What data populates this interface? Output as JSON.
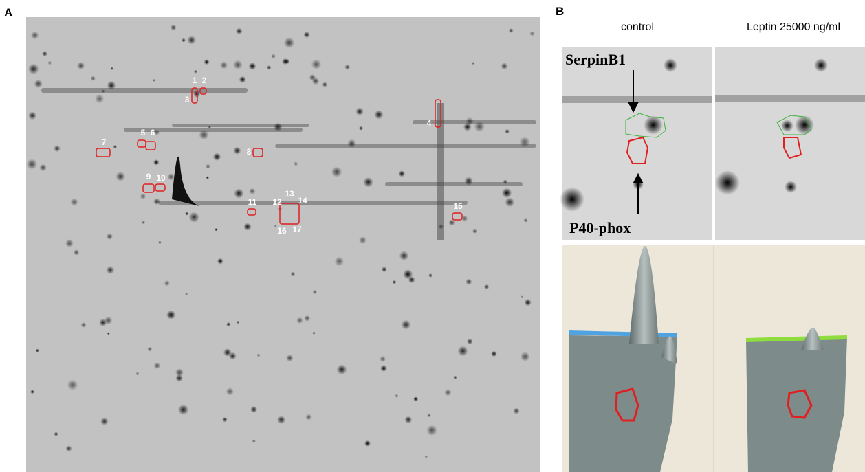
{
  "panel_a": {
    "label": "A",
    "spots": [
      "1",
      "2",
      "3",
      "4",
      "5",
      "6",
      "7",
      "8",
      "9",
      "10",
      "11",
      "12",
      "13",
      "14",
      "15",
      "16",
      "17"
    ]
  },
  "panel_b": {
    "label": "B",
    "columns": [
      "control",
      "Leptin 25000 ng/ml"
    ],
    "annotations": [
      "SerpinB1",
      "P40-phox"
    ]
  }
}
